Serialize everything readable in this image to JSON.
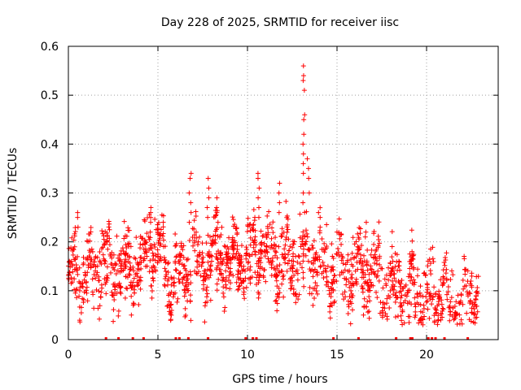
{
  "chart_data": {
    "type": "scatter",
    "title": "Day 228 of 2025, SRMTID for receiver iisc",
    "xlabel": "GPS time / hours",
    "ylabel": "SRMTID / TECUs",
    "xlim": [
      0,
      24
    ],
    "ylim": [
      0,
      0.6
    ],
    "xticks": [
      0,
      5,
      10,
      15,
      20
    ],
    "yticks": [
      0,
      0.1,
      0.2,
      0.3,
      0.4,
      0.5,
      0.6
    ],
    "grid": true,
    "series_color": "#ff0000",
    "marker": "+",
    "profile": {
      "x": [
        0,
        0.5,
        1,
        1.5,
        2,
        2.5,
        3,
        3.5,
        4,
        4.5,
        5,
        5.5,
        6,
        6.5,
        7,
        7.5,
        8,
        8.5,
        9,
        9.5,
        10,
        10.5,
        11,
        11.5,
        12,
        12.5,
        13,
        13.5,
        14,
        14.5,
        15,
        15.5,
        16,
        16.5,
        17,
        17.5,
        18,
        18.5,
        19,
        19.5,
        20,
        20.5,
        21,
        21.5,
        22,
        22.5,
        22.9
      ],
      "y": [
        0.12,
        0.14,
        0.13,
        0.15,
        0.16,
        0.14,
        0.15,
        0.14,
        0.15,
        0.18,
        0.2,
        0.13,
        0.12,
        0.14,
        0.17,
        0.15,
        0.17,
        0.18,
        0.14,
        0.17,
        0.16,
        0.18,
        0.17,
        0.18,
        0.16,
        0.15,
        0.17,
        0.16,
        0.16,
        0.14,
        0.15,
        0.14,
        0.14,
        0.15,
        0.14,
        0.12,
        0.11,
        0.1,
        0.09,
        0.09,
        0.09,
        0.08,
        0.08,
        0.07,
        0.08,
        0.09,
        0.09
      ],
      "spread": 0.05
    },
    "spikes": [
      {
        "x": 6.8,
        "y": [
          0.34,
          0.33,
          0.3,
          0.28,
          0.26,
          0.24
        ]
      },
      {
        "x": 7.8,
        "y": [
          0.33,
          0.31,
          0.29,
          0.27,
          0.25
        ]
      },
      {
        "x": 8.3,
        "y": [
          0.29,
          0.27,
          0.26,
          0.24
        ]
      },
      {
        "x": 10.6,
        "y": [
          0.34,
          0.33,
          0.31,
          0.29,
          0.27,
          0.25
        ]
      },
      {
        "x": 11.8,
        "y": [
          0.32,
          0.3,
          0.28,
          0.26
        ]
      },
      {
        "x": 13.15,
        "y": [
          0.56,
          0.54,
          0.53,
          0.51,
          0.46,
          0.45,
          0.42,
          0.4,
          0.38,
          0.36,
          0.34,
          0.3,
          0.28
        ]
      },
      {
        "x": 13.4,
        "y": [
          0.37,
          0.35,
          0.33,
          0.3
        ]
      },
      {
        "x": 4.6,
        "y": [
          0.27,
          0.26,
          0.25,
          0.24
        ]
      },
      {
        "x": 0.5,
        "y": [
          0.26,
          0.25,
          0.23
        ]
      },
      {
        "x": 16.6,
        "y": [
          0.24,
          0.22,
          0.21
        ]
      },
      {
        "x": 14.0,
        "y": [
          0.26,
          0.25,
          0.23
        ]
      }
    ],
    "gaps": [
      2.1,
      2.8,
      3.6,
      4.2,
      6.0,
      6.2,
      6.7,
      7.8,
      9.9,
      10.3,
      10.5,
      14.8,
      16.2,
      18.3,
      19.1,
      19.2,
      20.1,
      20.3,
      20.5,
      21.0,
      22.3
    ]
  }
}
